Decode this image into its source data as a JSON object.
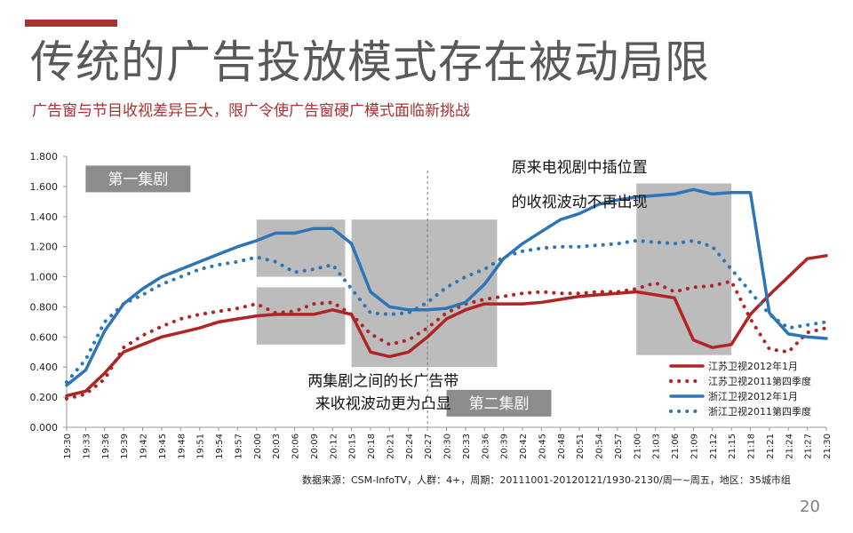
{
  "header": {
    "title": "传统的广告投放模式存在被动局限",
    "subtitle": "广告窗与节目收视差异巨大，限广令使广告窗硬广模式面临新挑战"
  },
  "footer": {
    "source": "数据来源：CSM-InfoTV，人群：4+，周期：20111001-20120121/1930-2130/周一~周五，地区：35城市组",
    "page_number": "20"
  },
  "colors": {
    "jiangsu": "#b22424",
    "zhejiang": "#2e75b6",
    "highlight": "#a6a6a6",
    "label_box": "#8c8c8c"
  },
  "chart_data": {
    "type": "line",
    "ylim": [
      0,
      1.8
    ],
    "yticks": [
      "0.000",
      "0.200",
      "0.400",
      "0.600",
      "0.800",
      "1.000",
      "1.200",
      "1.400",
      "1.600",
      "1.800"
    ],
    "x": [
      "19:30",
      "19:33",
      "19:36",
      "19:39",
      "19:42",
      "19:45",
      "19:48",
      "19:51",
      "19:54",
      "19:57",
      "20:00",
      "20:03",
      "20:06",
      "20:09",
      "20:12",
      "20:15",
      "20:18",
      "20:21",
      "20:24",
      "20:27",
      "20:30",
      "20:33",
      "20:36",
      "20:39",
      "20:42",
      "20:45",
      "20:48",
      "20:51",
      "20:54",
      "20:57",
      "21:00",
      "21:03",
      "21:06",
      "21:09",
      "21:12",
      "21:15",
      "21:18",
      "21:21",
      "21:24",
      "21:27",
      "21:30"
    ],
    "series": [
      {
        "name": "江苏卫视2012年1月",
        "style": "solid",
        "color": "#b22424",
        "values": [
          0.21,
          0.24,
          0.36,
          0.5,
          0.55,
          0.6,
          0.63,
          0.66,
          0.7,
          0.72,
          0.74,
          0.75,
          0.75,
          0.75,
          0.78,
          0.75,
          0.5,
          0.47,
          0.5,
          0.6,
          0.72,
          0.78,
          0.82,
          0.82,
          0.82,
          0.83,
          0.85,
          0.87,
          0.88,
          0.89,
          0.9,
          0.88,
          0.86,
          0.58,
          0.53,
          0.55,
          0.75,
          0.88,
          1.0,
          1.12,
          1.14
        ]
      },
      {
        "name": "江苏卫视2011第四季度",
        "style": "dotted",
        "color": "#b22424",
        "values": [
          0.19,
          0.22,
          0.32,
          0.53,
          0.61,
          0.67,
          0.72,
          0.75,
          0.77,
          0.79,
          0.82,
          0.76,
          0.77,
          0.82,
          0.83,
          0.75,
          0.62,
          0.55,
          0.58,
          0.66,
          0.76,
          0.82,
          0.85,
          0.87,
          0.89,
          0.9,
          0.89,
          0.89,
          0.9,
          0.9,
          0.92,
          0.96,
          0.9,
          0.93,
          0.94,
          0.97,
          0.72,
          0.52,
          0.5,
          0.63,
          0.66
        ]
      },
      {
        "name": "浙江卫视2012年1月",
        "style": "solid",
        "color": "#2e75b6",
        "values": [
          0.28,
          0.38,
          0.64,
          0.82,
          0.92,
          1.0,
          1.05,
          1.1,
          1.15,
          1.2,
          1.24,
          1.29,
          1.29,
          1.32,
          1.32,
          1.22,
          0.9,
          0.8,
          0.78,
          0.78,
          0.79,
          0.83,
          0.95,
          1.12,
          1.22,
          1.3,
          1.38,
          1.42,
          1.48,
          1.51,
          1.53,
          1.54,
          1.55,
          1.58,
          1.55,
          1.56,
          1.56,
          0.76,
          0.62,
          0.6,
          0.59
        ]
      },
      {
        "name": "浙江卫视2011第四季度",
        "style": "dotted",
        "color": "#2e75b6",
        "values": [
          0.3,
          0.45,
          0.7,
          0.82,
          0.88,
          0.95,
          1.0,
          1.05,
          1.08,
          1.1,
          1.13,
          1.1,
          1.03,
          1.05,
          1.08,
          0.92,
          0.76,
          0.75,
          0.76,
          0.83,
          0.93,
          1.0,
          1.05,
          1.13,
          1.17,
          1.19,
          1.2,
          1.2,
          1.21,
          1.22,
          1.24,
          1.23,
          1.22,
          1.24,
          1.2,
          1.05,
          0.9,
          0.75,
          0.66,
          0.68,
          0.7
        ]
      }
    ],
    "legend_position": "bottom-right",
    "highlight_boxes": [
      {
        "x_start": "20:00",
        "x_end": "20:14",
        "y_min": 1.0,
        "y_max": 1.38
      },
      {
        "x_start": "20:00",
        "x_end": "20:14",
        "y_min": 0.55,
        "y_max": 0.93
      },
      {
        "x_start": "20:15",
        "x_end": "20:38",
        "y_min": 0.4,
        "y_max": 1.38
      },
      {
        "x_start": "21:00",
        "x_end": "21:15",
        "y_min": 0.48,
        "y_max": 1.62
      }
    ],
    "divider_x": "20:27",
    "episode_labels": [
      {
        "text": "第一集剧",
        "x": "19:33",
        "y": 1.65
      },
      {
        "text": "第二集剧",
        "x": "20:30",
        "y": 0.16
      }
    ],
    "annotations": [
      {
        "text": "两集剧之间的长广告带",
        "x": "20:20",
        "y": 0.31
      },
      {
        "text": "来收视波动更为凸显",
        "x": "20:20",
        "y": 0.16
      },
      {
        "text": "原来电视剧中插位置",
        "x": "20:51",
        "y": 1.73
      },
      {
        "text": "的收视波动不再出现",
        "x": "20:51",
        "y": 1.5
      }
    ]
  }
}
